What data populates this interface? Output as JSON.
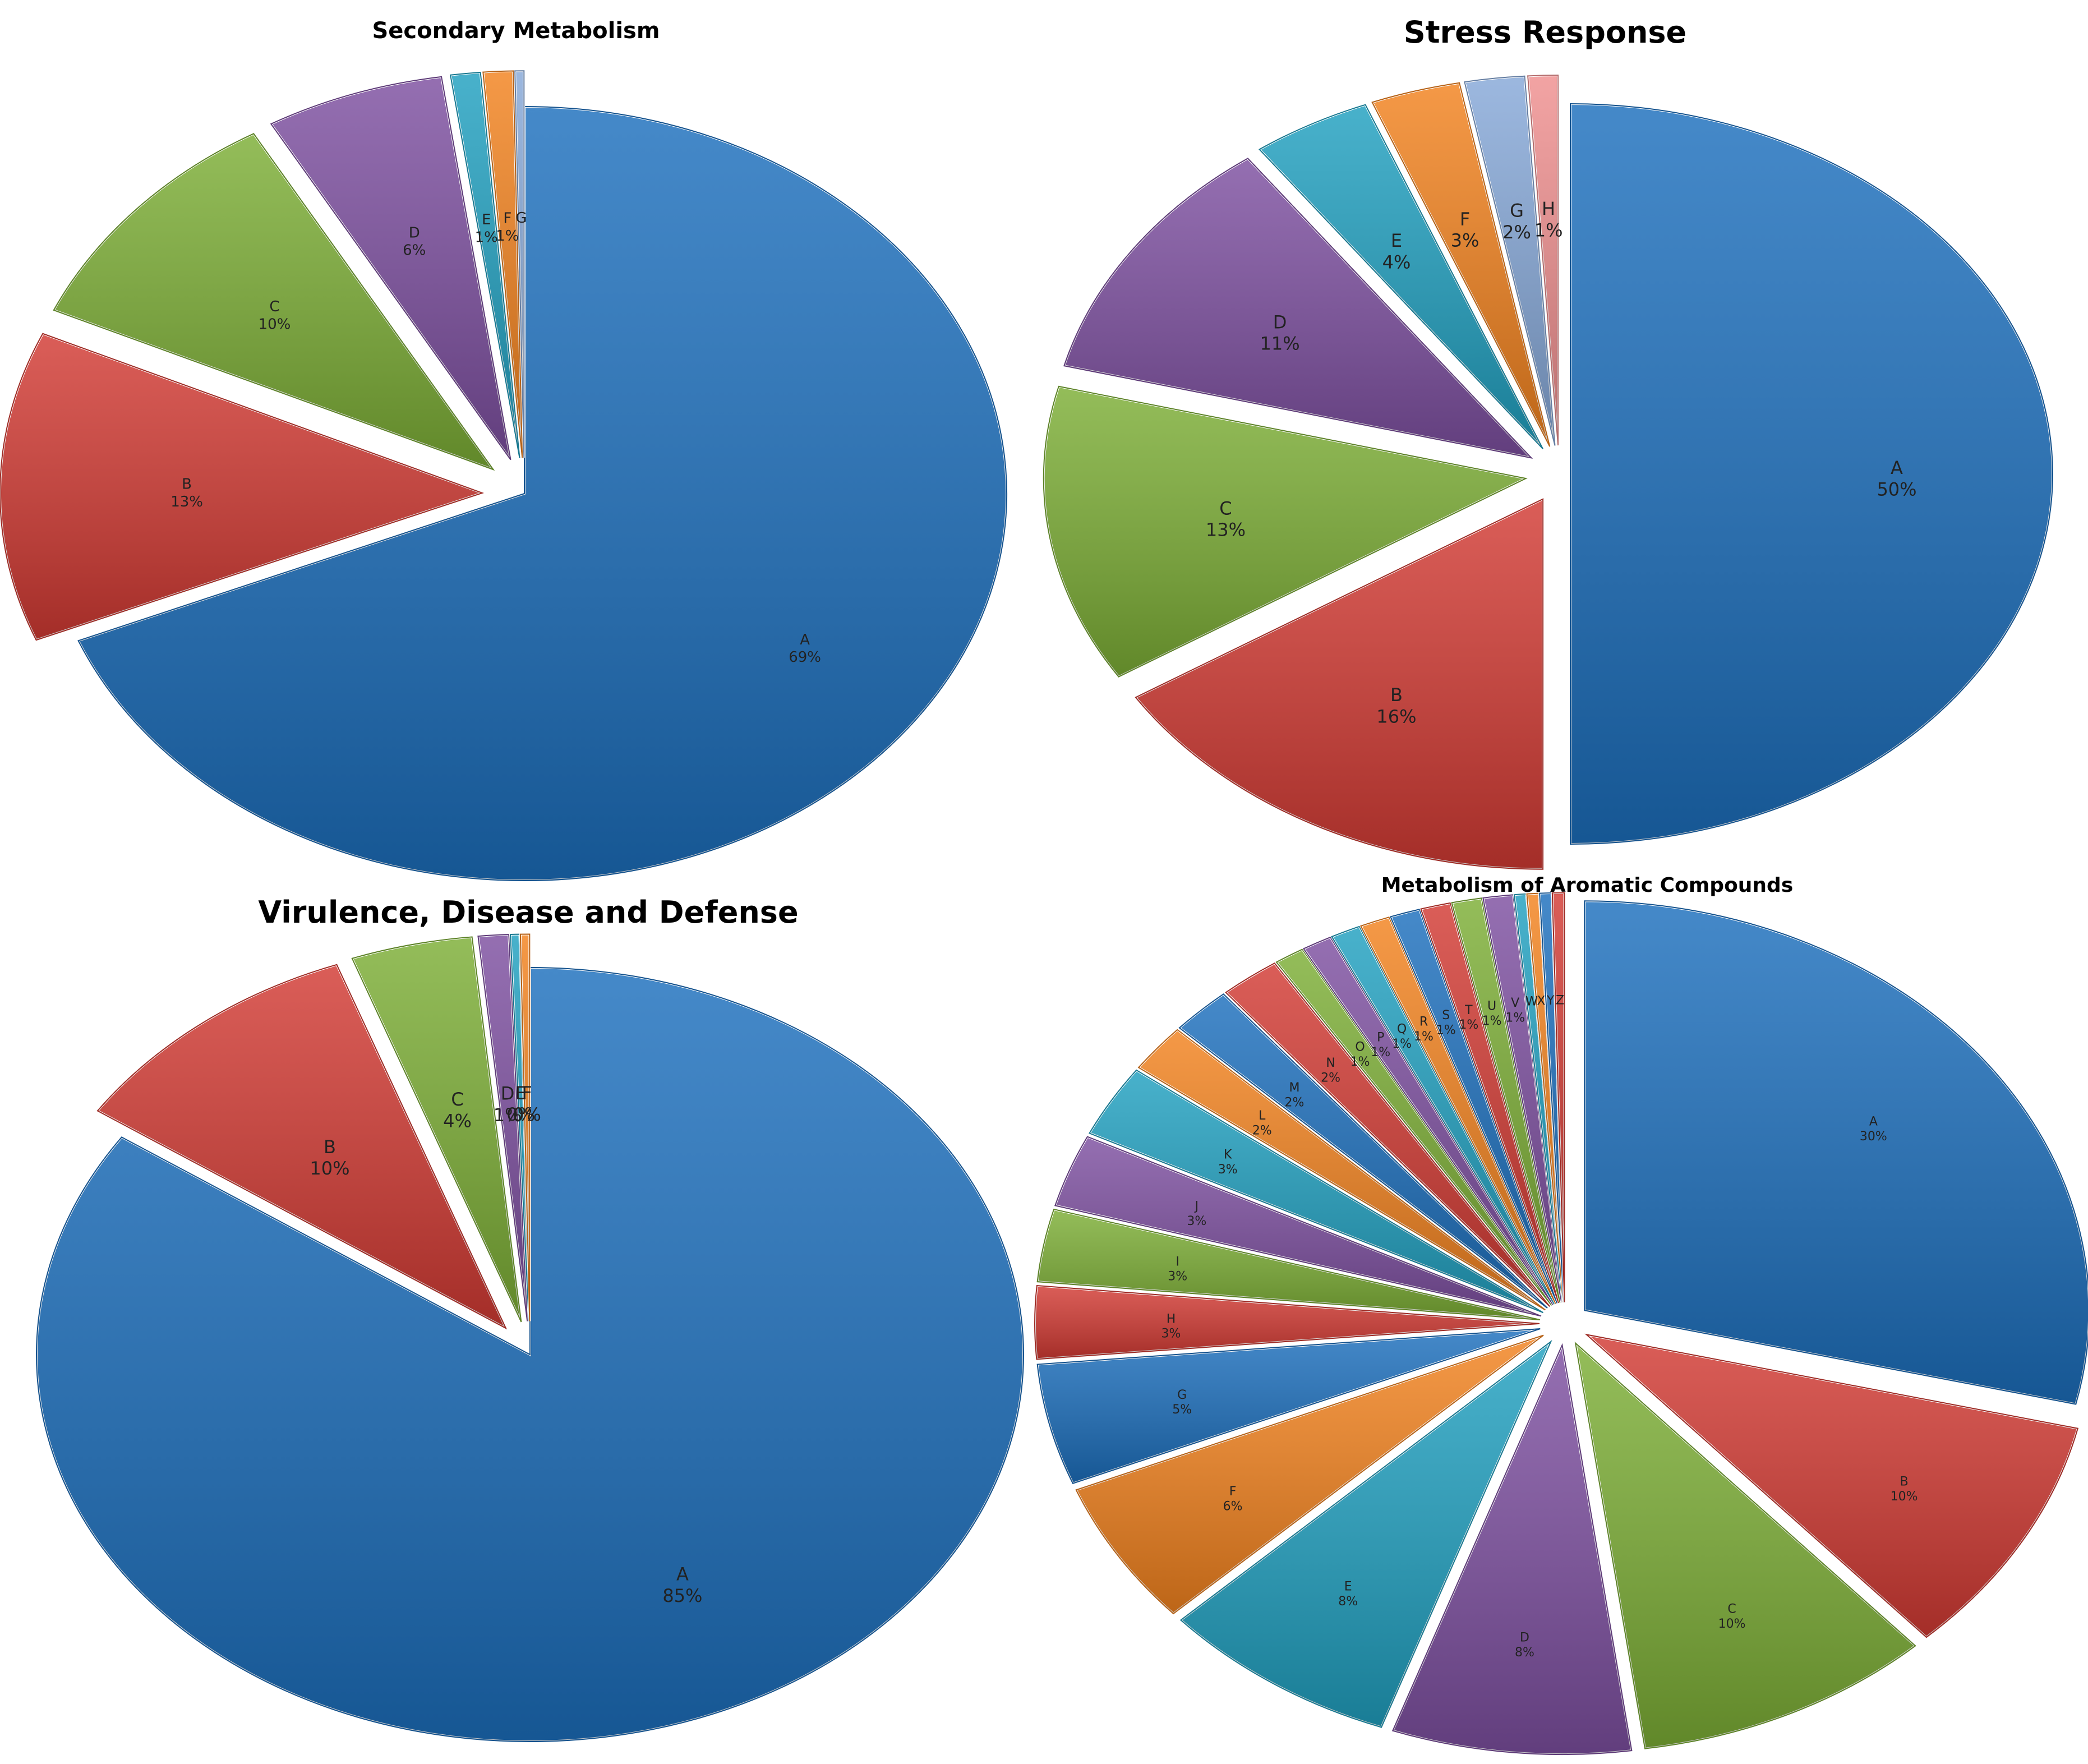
{
  "colors": {
    "blue": "#1c6fbd",
    "red": "#d23a33",
    "green": "#7cae35",
    "purple": "#7d4fa0",
    "teal": "#20a0c0",
    "orange": "#f2821e",
    "lightblue": "#86a8d8",
    "pink": "#ef8f8f"
  },
  "chart_data": [
    {
      "type": "pie",
      "title": "Secondary Metabolism",
      "slices": [
        {
          "label": "A",
          "value": 69,
          "text": "69%",
          "color": "blue"
        },
        {
          "label": "B",
          "value": 13,
          "text": "13%",
          "color": "red"
        },
        {
          "label": "C",
          "value": 10,
          "text": "10%",
          "color": "green"
        },
        {
          "label": "D",
          "value": 6,
          "text": "6%",
          "color": "purple"
        },
        {
          "label": "E",
          "value": 1,
          "text": "1%",
          "color": "teal"
        },
        {
          "label": "F",
          "value": 1,
          "text": "1%",
          "color": "orange"
        },
        {
          "label": "G",
          "value": 0.3,
          "text": "",
          "color": "lightblue"
        }
      ]
    },
    {
      "type": "pie",
      "title": "Stress Response",
      "slices": [
        {
          "label": "A",
          "value": 50,
          "text": "50%",
          "color": "blue"
        },
        {
          "label": "B",
          "value": 16,
          "text": "16%",
          "color": "red"
        },
        {
          "label": "C",
          "value": 13,
          "text": "13%",
          "color": "green"
        },
        {
          "label": "D",
          "value": 11,
          "text": "11%",
          "color": "purple"
        },
        {
          "label": "E",
          "value": 4,
          "text": "4%",
          "color": "teal"
        },
        {
          "label": "F",
          "value": 3,
          "text": "3%",
          "color": "orange"
        },
        {
          "label": "G",
          "value": 2,
          "text": "2%",
          "color": "lightblue"
        },
        {
          "label": "H",
          "value": 1,
          "text": "1%",
          "color": "pink"
        }
      ]
    },
    {
      "type": "pie",
      "title": "Virulence, Disease and Defense",
      "slices": [
        {
          "label": "A",
          "value": 85,
          "text": "85%",
          "color": "blue"
        },
        {
          "label": "B",
          "value": 10,
          "text": "10%",
          "color": "red"
        },
        {
          "label": "C",
          "value": 4,
          "text": "4%",
          "color": "green"
        },
        {
          "label": "D",
          "value": 1,
          "text": "1%",
          "color": "purple"
        },
        {
          "label": "E",
          "value": 0.3,
          "text": "0%",
          "color": "teal"
        },
        {
          "label": "F",
          "value": 0.3,
          "text": "0%",
          "color": "orange"
        }
      ]
    },
    {
      "type": "pie",
      "title": "Metabolism of Aromatic Compounds",
      "slices": [
        {
          "label": "A",
          "value": 30,
          "text": "30%",
          "color": "blue"
        },
        {
          "label": "B",
          "value": 10,
          "text": "10%",
          "color": "red"
        },
        {
          "label": "C",
          "value": 10,
          "text": "10%",
          "color": "green"
        },
        {
          "label": "D",
          "value": 8,
          "text": "8%",
          "color": "purple"
        },
        {
          "label": "E",
          "value": 8,
          "text": "8%",
          "color": "teal"
        },
        {
          "label": "F",
          "value": 6,
          "text": "6%",
          "color": "orange"
        },
        {
          "label": "G",
          "value": 5,
          "text": "5%",
          "color": "blue"
        },
        {
          "label": "H",
          "value": 3,
          "text": "3%",
          "color": "red"
        },
        {
          "label": "I",
          "value": 3,
          "text": "3%",
          "color": "green"
        },
        {
          "label": "J",
          "value": 3,
          "text": "3%",
          "color": "purple"
        },
        {
          "label": "K",
          "value": 3,
          "text": "3%",
          "color": "teal"
        },
        {
          "label": "L",
          "value": 2,
          "text": "2%",
          "color": "orange"
        },
        {
          "label": "M",
          "value": 2,
          "text": "2%",
          "color": "blue"
        },
        {
          "label": "N",
          "value": 2,
          "text": "2%",
          "color": "red"
        },
        {
          "label": "O",
          "value": 1,
          "text": "1%",
          "color": "green"
        },
        {
          "label": "P",
          "value": 1,
          "text": "1%",
          "color": "purple"
        },
        {
          "label": "Q",
          "value": 1,
          "text": "1%",
          "color": "teal"
        },
        {
          "label": "R",
          "value": 1,
          "text": "1%",
          "color": "orange"
        },
        {
          "label": "S",
          "value": 1,
          "text": "1%",
          "color": "blue"
        },
        {
          "label": "T",
          "value": 1,
          "text": "1%",
          "color": "red"
        },
        {
          "label": "U",
          "value": 1,
          "text": "1%",
          "color": "green"
        },
        {
          "label": "V",
          "value": 1,
          "text": "1%",
          "color": "purple"
        },
        {
          "label": "W",
          "value": 0.4,
          "text": "",
          "color": "teal"
        },
        {
          "label": "X",
          "value": 0.4,
          "text": "",
          "color": "orange"
        },
        {
          "label": "Y",
          "value": 0.4,
          "text": "",
          "color": "blue"
        },
        {
          "label": "Z",
          "value": 0.4,
          "text": "",
          "color": "red"
        }
      ]
    }
  ]
}
